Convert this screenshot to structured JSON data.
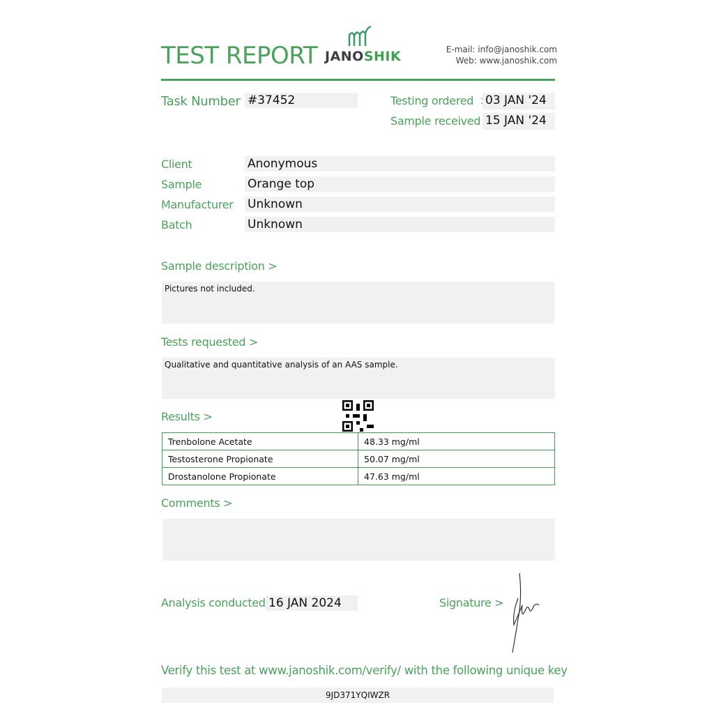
{
  "header": {
    "title": "TEST REPORT",
    "logo_text_dark": "JANO",
    "logo_text_green": "SHIK",
    "email": "E-mail: info@janoshik.com",
    "web": "Web: www.janoshik.com"
  },
  "task": {
    "label": "Task Number",
    "value": "#37452"
  },
  "dates": {
    "ordered_label": "Testing ordered  >",
    "ordered": "03 JAN '24",
    "received_label": "Sample received >",
    "received": "15 JAN '24"
  },
  "fields": [
    {
      "label": "Client",
      "value": "Anonymous"
    },
    {
      "label": "Sample",
      "value": "Orange top"
    },
    {
      "label": "Manufacturer",
      "value": "Unknown"
    },
    {
      "label": "Batch",
      "value": "Unknown"
    }
  ],
  "sample_description": {
    "label": "Sample description >",
    "text": "Pictures not included."
  },
  "tests_requested": {
    "label": "Tests requested >",
    "text": "Qualitative and quantitative analysis of an AAS sample."
  },
  "results": {
    "label": "Results >",
    "rows": [
      {
        "compound": "Trenbolone Acetate",
        "amount": "48.33 mg/ml"
      },
      {
        "compound": "Testosterone Propionate",
        "amount": "50.07 mg/ml"
      },
      {
        "compound": "Drostanolone Propionate",
        "amount": "47.63 mg/ml"
      }
    ]
  },
  "comments": {
    "label": "Comments >",
    "text": ""
  },
  "analysis": {
    "label": "Analysis conducted >",
    "date": "16 JAN 2024"
  },
  "signature": {
    "label": "Signature >"
  },
  "verify": {
    "text": "Verify this test at www.janoshik.com/verify/ with the following unique key",
    "key": "9JD371YQIWZR"
  },
  "colors": {
    "accent": "#4aa35a"
  }
}
